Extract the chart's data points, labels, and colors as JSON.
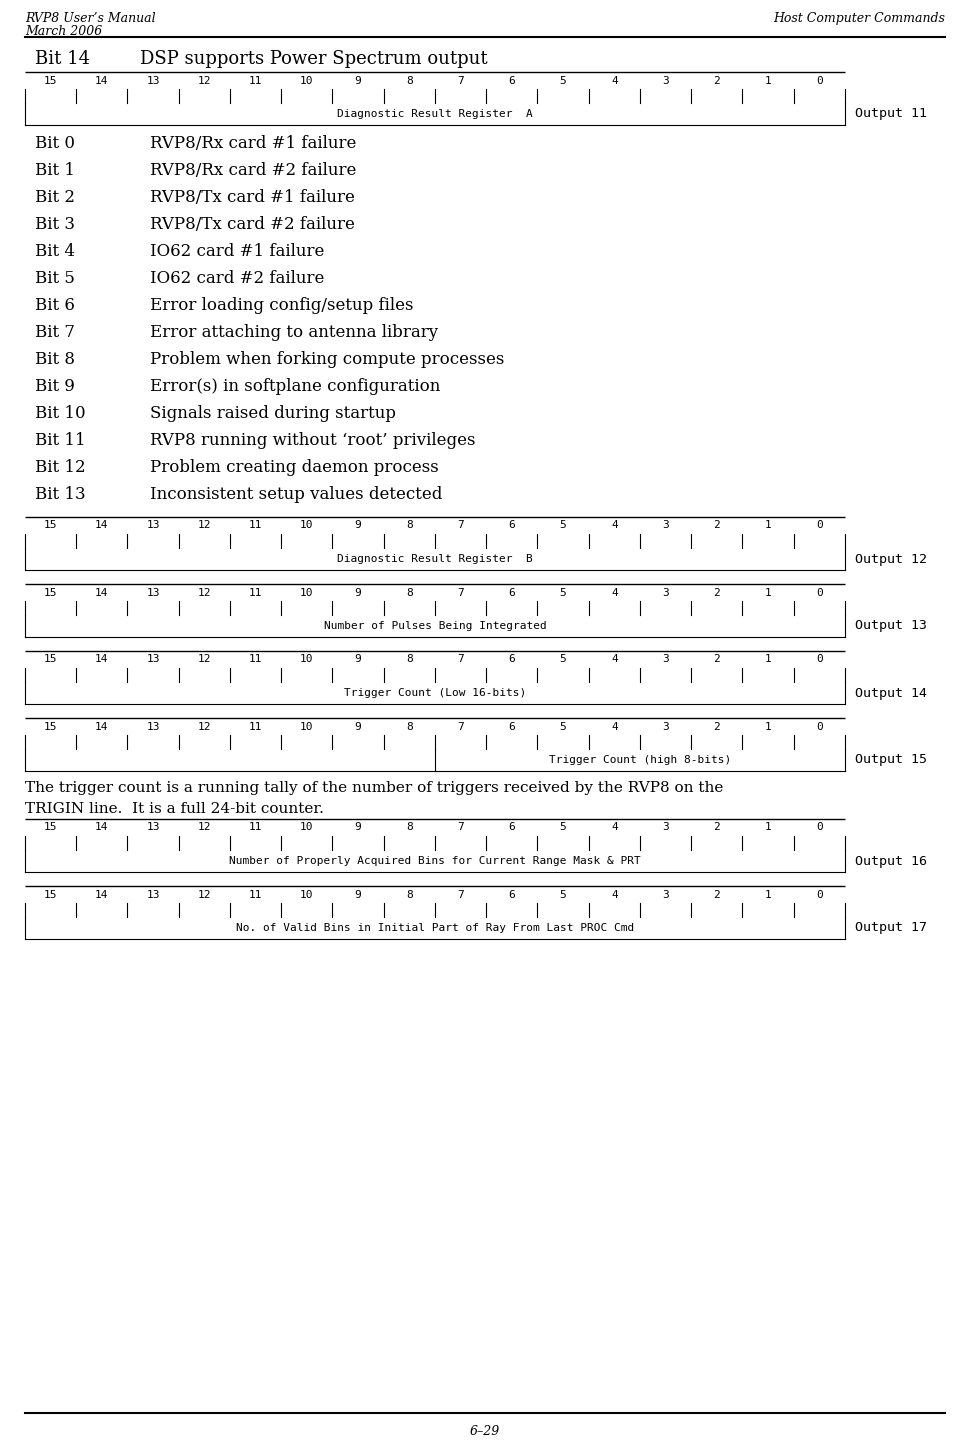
{
  "header_left_line1": "RVP8 User’s Manual",
  "header_left_line2": "March 2006",
  "header_right": "Host Computer Commands",
  "footer_center": "6–29",
  "bit14_label": "Bit 14",
  "bit14_desc": "DSP supports Power Spectrum output",
  "bit_numbers": [
    "15",
    "14",
    "13",
    "12",
    "11",
    "10",
    "9",
    "8",
    "7",
    "6",
    "5",
    "4",
    "3",
    "2",
    "1",
    "0"
  ],
  "register_boxes": [
    {
      "label": "Diagnostic Result Register  A",
      "output": "Output 11",
      "split": false
    },
    {
      "label": "Diagnostic Result Register  B",
      "output": "Output 12",
      "split": false
    },
    {
      "label": "Number of Pulses Being Integrated",
      "output": "Output 13",
      "split": false
    },
    {
      "label": "Trigger Count (Low 16-bits)",
      "output": "Output 14",
      "split": false
    },
    {
      "label_left": "",
      "label_right": "Trigger Count (high 8-bits)",
      "output": "Output 15",
      "split": true
    },
    {
      "label": "Number of Properly Acquired Bins for Current Range Mask & PRT",
      "output": "Output 16",
      "split": false
    },
    {
      "label": "No. of Valid Bins in Initial Part of Ray From Last PROC Cmd",
      "output": "Output 17",
      "split": false
    }
  ],
  "bit_descriptions": [
    [
      "Bit 0",
      "RVP8/Rx card #1 failure"
    ],
    [
      "Bit 1",
      "RVP8/Rx card #2 failure"
    ],
    [
      "Bit 2",
      "RVP8/Tx card #1 failure"
    ],
    [
      "Bit 3",
      "RVP8/Tx card #2 failure"
    ],
    [
      "Bit 4",
      "IO62 card #1 failure"
    ],
    [
      "Bit 5",
      "IO62 card #2 failure"
    ],
    [
      "Bit 6",
      "Error loading config/setup files"
    ],
    [
      "Bit 7",
      "Error attaching to antenna library"
    ],
    [
      "Bit 8",
      "Problem when forking compute processes"
    ],
    [
      "Bit 9",
      "Error(s) in softplane configuration"
    ],
    [
      "Bit 10",
      "Signals raised during startup"
    ],
    [
      "Bit 11",
      "RVP8 running without ‘root’ privileges"
    ],
    [
      "Bit 12",
      "Problem creating daemon process"
    ],
    [
      "Bit 13",
      "Inconsistent setup values detected"
    ]
  ],
  "trigger_paragraph_line1": "The trigger count is a running tally of the number of triggers received by the RVP8 on the",
  "trigger_paragraph_line2": "TRIGIN line.  It is a full 24-bit counter.",
  "monospace_font": "DejaVu Sans Mono",
  "serif_font": "DejaVu Serif",
  "bg_color": "#ffffff",
  "text_color": "#000000"
}
